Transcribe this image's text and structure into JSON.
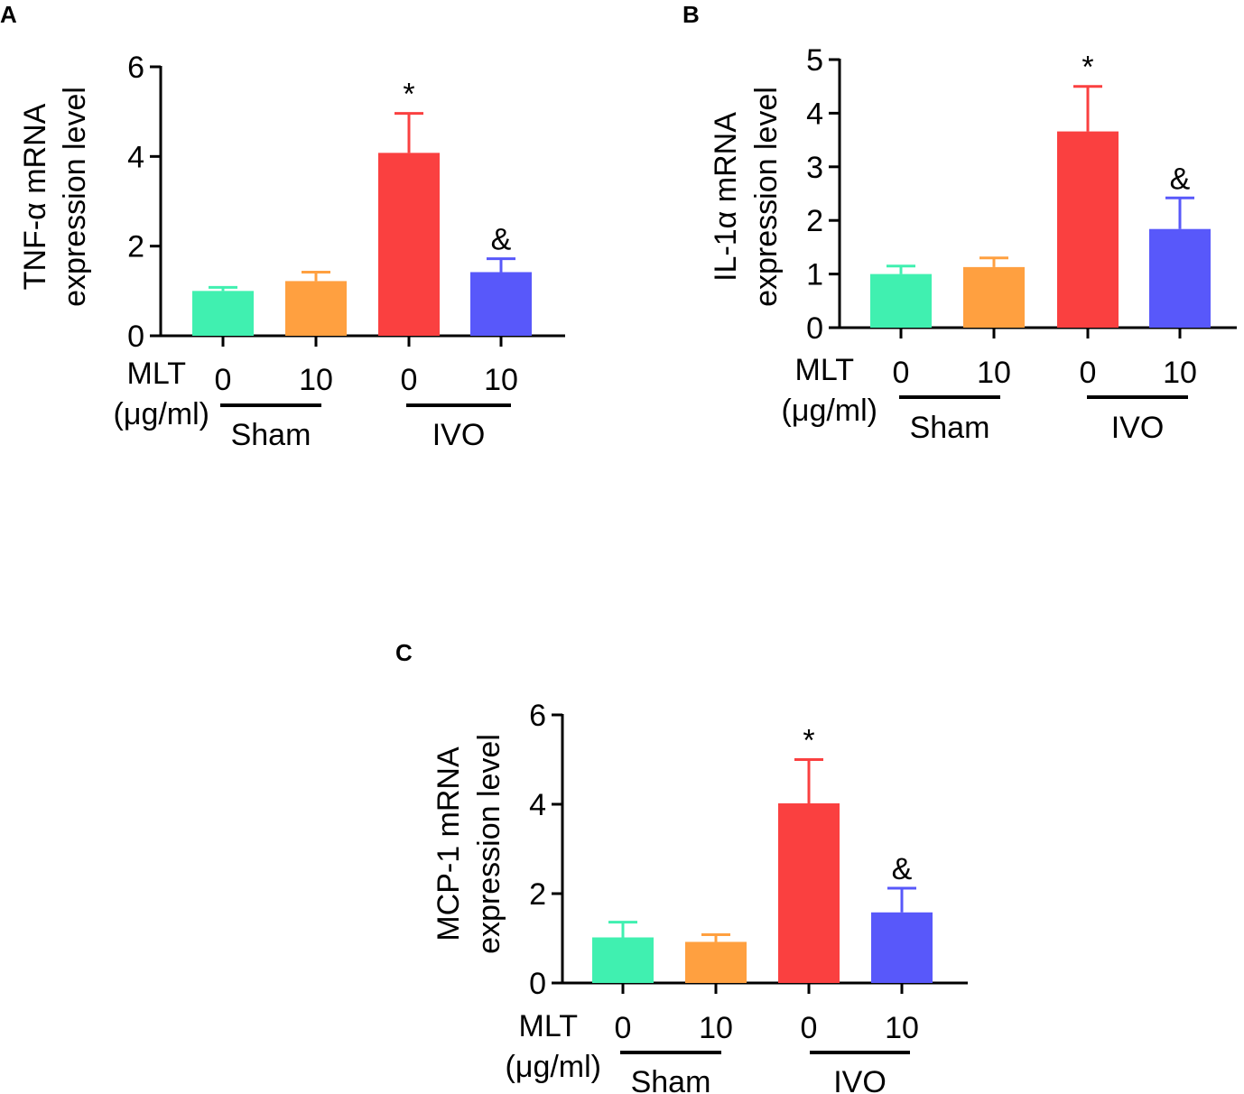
{
  "chart_data": [
    {
      "type": "bar",
      "panel": "A",
      "ylabel_lines": [
        "TNF-α mRNA",
        "expression level"
      ],
      "ylim": [
        0,
        6
      ],
      "yticks": [
        "0",
        "2",
        "4",
        "6"
      ],
      "ytick_values": [
        0,
        2,
        4,
        6
      ],
      "row_labels": [
        "MLT",
        "(μg/ml)"
      ],
      "categories": [
        "0",
        "10",
        "0",
        "10"
      ],
      "groups": [
        "Sham",
        "IVO"
      ],
      "values": [
        1.0,
        1.22,
        4.08,
        1.42
      ],
      "errors": [
        0.08,
        0.2,
        0.88,
        0.3
      ],
      "significance": [
        "",
        "",
        "*",
        "&"
      ],
      "colors": [
        "#40f0b0",
        "#ffa040",
        "#fa4040",
        "#5858fa"
      ]
    },
    {
      "type": "bar",
      "panel": "B",
      "ylabel_lines": [
        "IL-1α mRNA",
        "expression level"
      ],
      "ylim": [
        0,
        5
      ],
      "yticks": [
        "0",
        "1",
        "2",
        "3",
        "4",
        "5"
      ],
      "ytick_values": [
        0,
        1,
        2,
        3,
        4,
        5
      ],
      "row_labels": [
        "MLT",
        "(μg/ml)"
      ],
      "categories": [
        "0",
        "10",
        "0",
        "10"
      ],
      "groups": [
        "Sham",
        "IVO"
      ],
      "values": [
        1.0,
        1.13,
        3.66,
        1.84
      ],
      "errors": [
        0.15,
        0.17,
        0.84,
        0.58
      ],
      "significance": [
        "",
        "",
        "*",
        "&"
      ],
      "colors": [
        "#40f0b0",
        "#ffa040",
        "#fa4040",
        "#5858fa"
      ]
    },
    {
      "type": "bar",
      "panel": "C",
      "ylabel_lines": [
        "MCP-1 mRNA",
        "expression level"
      ],
      "ylim": [
        0,
        6
      ],
      "yticks": [
        "0",
        "2",
        "4",
        "6"
      ],
      "ytick_values": [
        0,
        2,
        4,
        6
      ],
      "row_labels": [
        "MLT",
        "(μg/ml)"
      ],
      "categories": [
        "0",
        "10",
        "0",
        "10"
      ],
      "groups": [
        "Sham",
        "IVO"
      ],
      "values": [
        1.02,
        0.92,
        4.02,
        1.58
      ],
      "errors": [
        0.34,
        0.16,
        0.98,
        0.54
      ],
      "significance": [
        "",
        "",
        "*",
        "&"
      ],
      "colors": [
        "#40f0b0",
        "#ffa040",
        "#fa4040",
        "#5858fa"
      ]
    }
  ]
}
